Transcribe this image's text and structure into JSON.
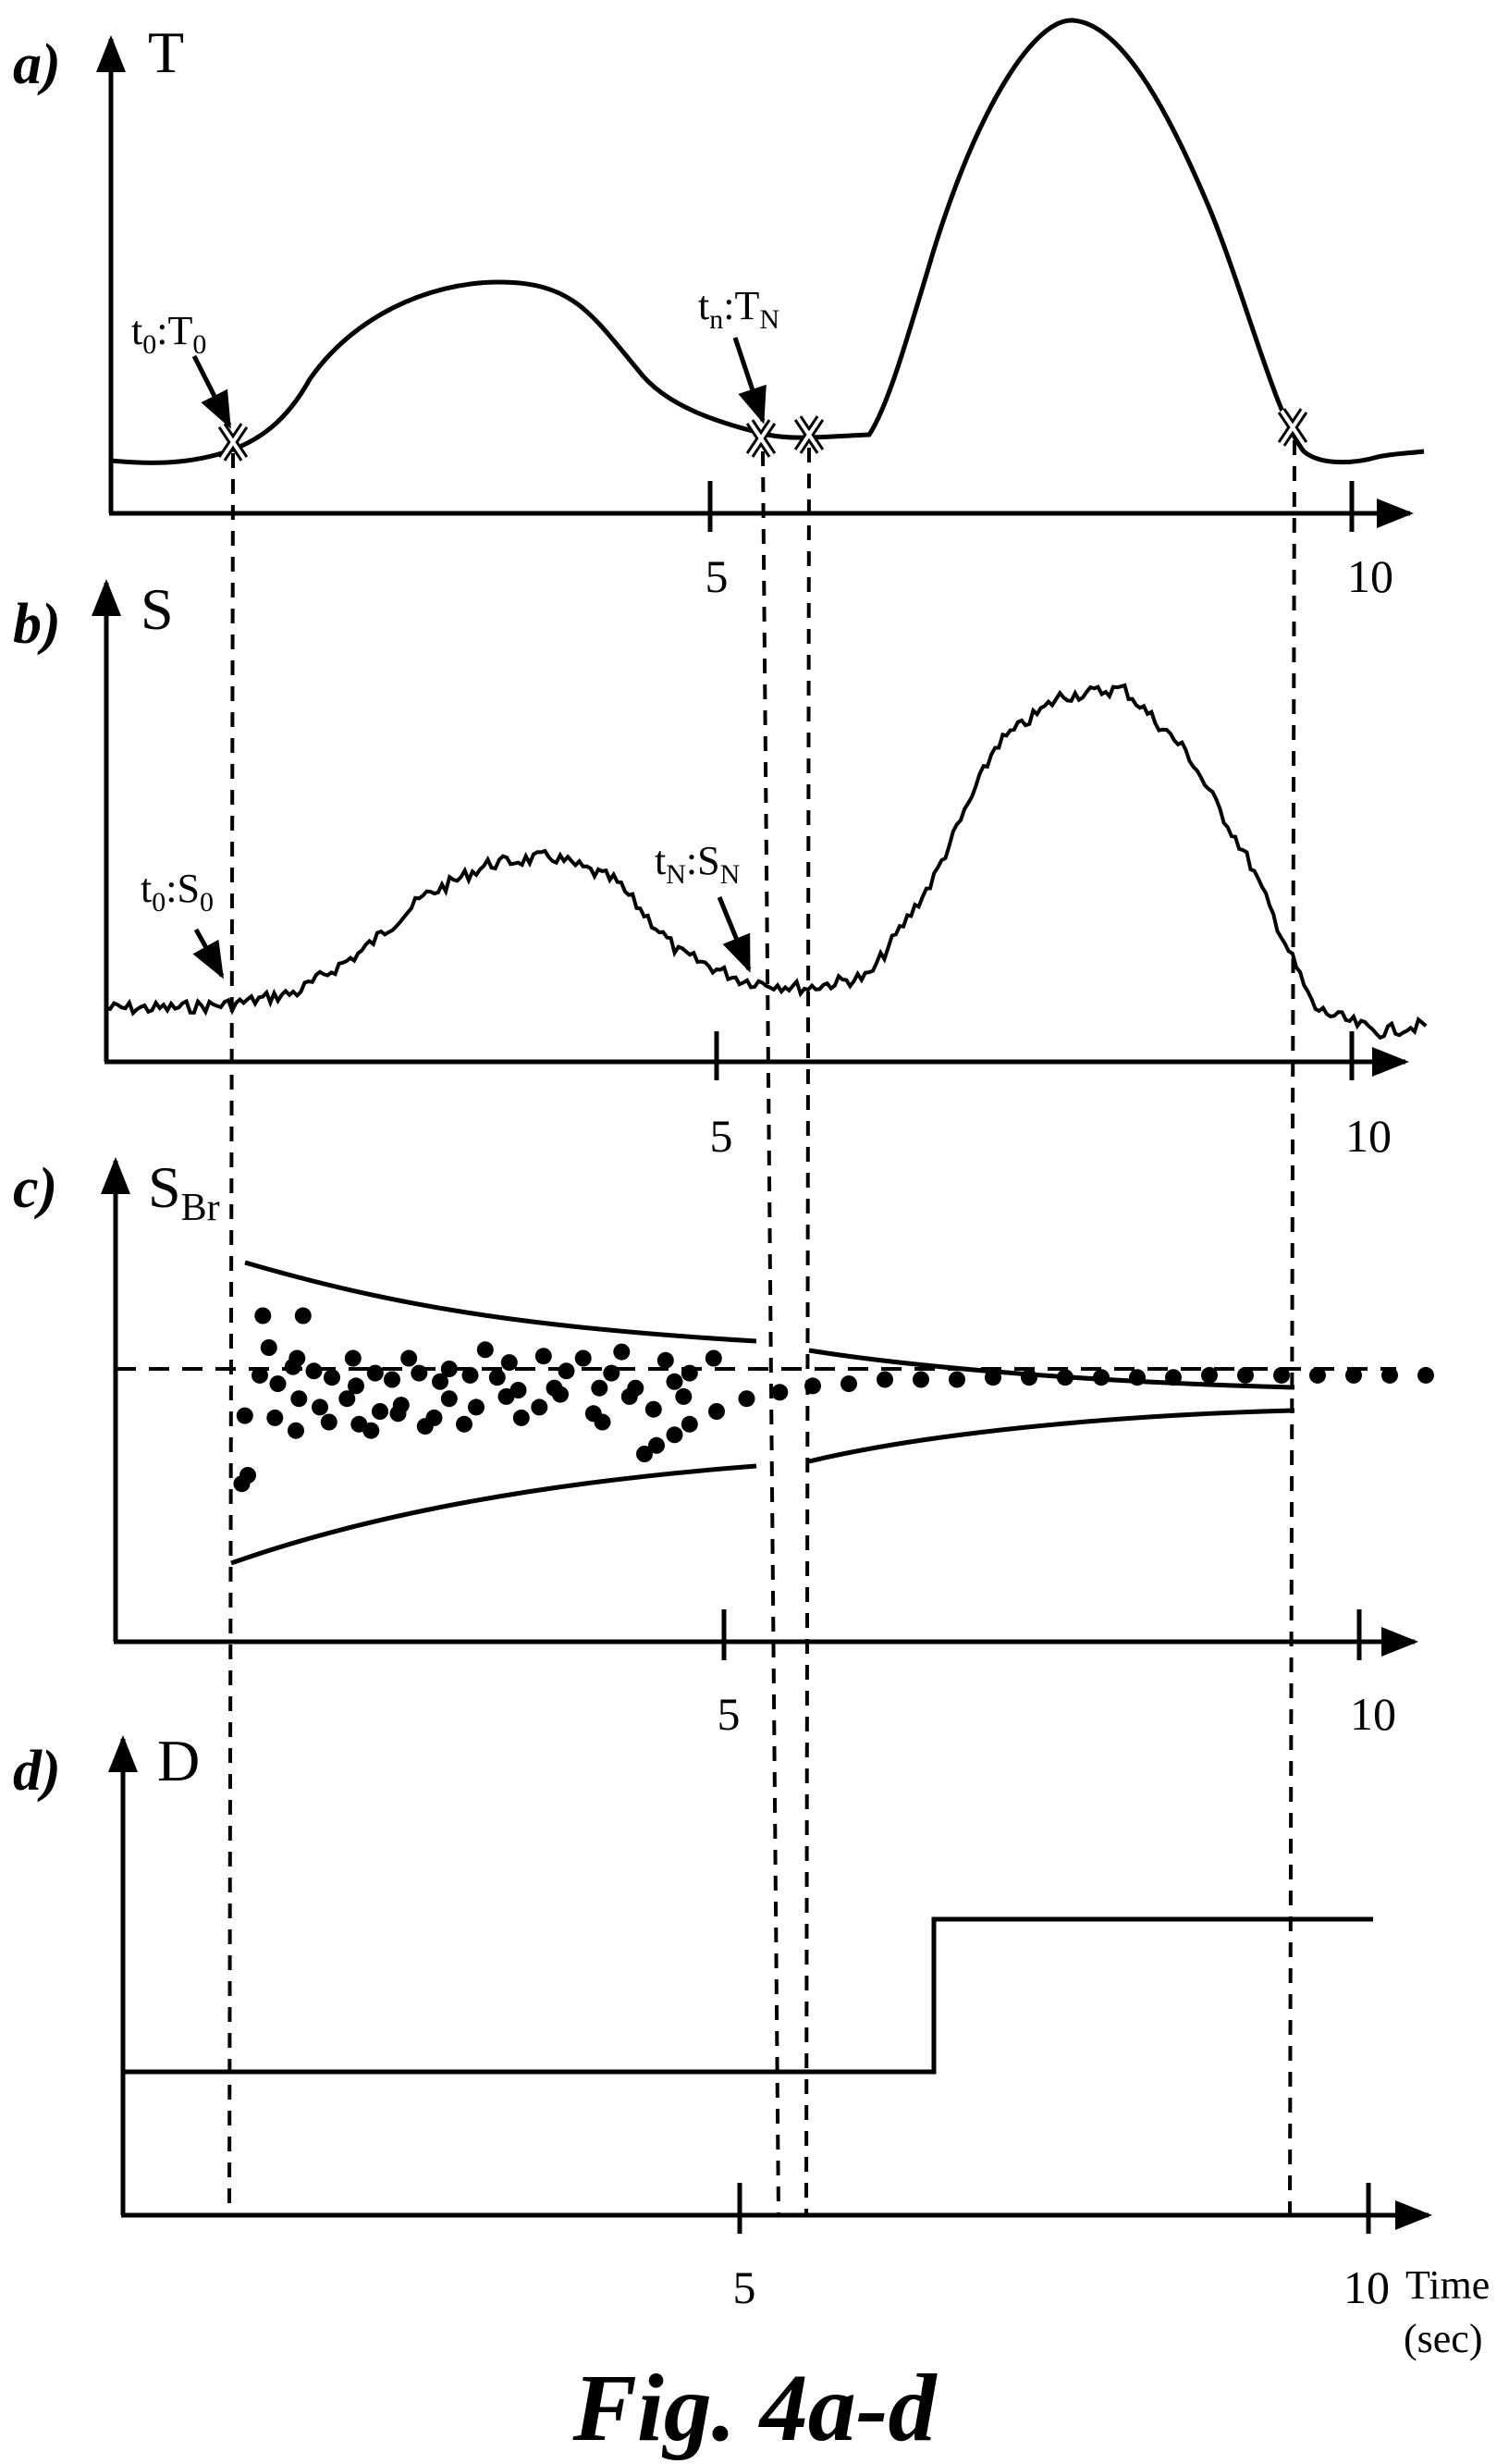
{
  "caption": "Fig. 4a-d",
  "time_axis": {
    "ticks": [
      "5",
      "10"
    ],
    "label_line1": "Time",
    "label_line2": "(sec)"
  },
  "panels": {
    "a": {
      "letter": "a)",
      "y_label": "T",
      "marker_labels": [
        {
          "t": "t",
          "t_sub": "0",
          "v": "T",
          "v_sub": "0"
        },
        {
          "t": "t",
          "t_sub": "n",
          "v": "T",
          "v_sub": "N"
        }
      ]
    },
    "b": {
      "letter": "b)",
      "y_label": "S",
      "marker_labels": [
        {
          "t": "t",
          "t_sub": "0",
          "v": "S",
          "v_sub": "0"
        },
        {
          "t": "t",
          "t_sub": "N",
          "v": "S",
          "v_sub": "N"
        }
      ]
    },
    "c": {
      "letter": "c)",
      "y_label": "S",
      "y_label_sub": "Br"
    },
    "d": {
      "letter": "d)",
      "y_label": "D"
    }
  },
  "markers": {
    "x_times": [
      1.95,
      5.3,
      5.6,
      9.37
    ],
    "dashed_times": [
      1.9,
      5.25,
      5.6,
      9.35
    ]
  },
  "chart_data": [
    {
      "type": "line",
      "panel": "a",
      "ylabel": "T",
      "x": [
        0,
        0.5,
        1.0,
        1.5,
        2.0,
        2.5,
        3.0,
        3.5,
        4.0,
        4.5,
        5.0,
        5.5,
        6.0,
        6.5,
        7.0,
        7.5,
        8.0,
        8.5,
        9.0,
        9.5,
        10.0,
        10.4
      ],
      "y": [
        0.12,
        0.11,
        0.12,
        0.16,
        0.28,
        0.42,
        0.52,
        0.53,
        0.45,
        0.29,
        0.19,
        0.17,
        0.18,
        0.5,
        0.82,
        1.0,
        0.95,
        0.7,
        0.4,
        0.13,
        0.1,
        0.13
      ]
    },
    {
      "type": "line",
      "panel": "b",
      "ylabel": "S",
      "x": [
        0,
        0.5,
        1.0,
        1.5,
        2.0,
        2.5,
        3.0,
        3.5,
        4.0,
        4.5,
        5.0,
        5.5,
        6.0,
        6.5,
        7.0,
        7.5,
        8.0,
        8.5,
        9.0,
        9.5,
        10.0,
        10.4
      ],
      "y": [
        0.14,
        0.14,
        0.15,
        0.18,
        0.28,
        0.42,
        0.5,
        0.52,
        0.46,
        0.28,
        0.21,
        0.19,
        0.22,
        0.46,
        0.8,
        0.92,
        0.94,
        0.78,
        0.5,
        0.14,
        0.08,
        0.1
      ]
    },
    {
      "type": "scatter",
      "panel": "c",
      "ylabel": "S_Br",
      "points": [
        [
          2.45,
          0.25
        ],
        [
          3.12,
          0.25
        ],
        [
          2.55,
          0.1
        ],
        [
          3.02,
          0.05
        ],
        [
          3.95,
          0.05
        ],
        [
          4.32,
          -0.02
        ],
        [
          4.88,
          0.05
        ],
        [
          5.55,
          0.0
        ],
        [
          6.15,
          0.09
        ],
        [
          6.55,
          0.03
        ],
        [
          7.12,
          0.06
        ],
        [
          7.78,
          0.05
        ],
        [
          8.42,
          0.08
        ],
        [
          9.15,
          0.04
        ],
        [
          9.95,
          0.05
        ],
        [
          2.4,
          -0.03
        ],
        [
          2.7,
          -0.07
        ],
        [
          2.95,
          0.01
        ],
        [
          3.3,
          -0.01
        ],
        [
          3.6,
          -0.04
        ],
        [
          4.0,
          -0.08
        ],
        [
          4.6,
          -0.05
        ],
        [
          5.05,
          -0.02
        ],
        [
          5.4,
          -0.06
        ],
        [
          5.9,
          -0.03
        ],
        [
          6.35,
          -0.04
        ],
        [
          6.7,
          -0.1
        ],
        [
          7.3,
          -0.09
        ],
        [
          7.5,
          -0.01
        ],
        [
          8.05,
          -0.09
        ],
        [
          8.25,
          -0.02
        ],
        [
          8.65,
          -0.09
        ],
        [
          9.3,
          -0.06
        ],
        [
          9.55,
          -0.02
        ],
        [
          2.15,
          -0.22
        ],
        [
          2.65,
          -0.23
        ],
        [
          3.05,
          -0.14
        ],
        [
          3.4,
          -0.18
        ],
        [
          3.85,
          -0.14
        ],
        [
          4.4,
          -0.2
        ],
        [
          4.75,
          -0.17
        ],
        [
          5.3,
          -0.23
        ],
        [
          5.55,
          -0.14
        ],
        [
          6.0,
          -0.18
        ],
        [
          6.5,
          -0.13
        ],
        [
          7.05,
          -0.18
        ],
        [
          7.4,
          -0.12
        ],
        [
          7.95,
          -0.21
        ],
        [
          8.55,
          -0.13
        ],
        [
          8.95,
          -0.19
        ],
        [
          9.45,
          -0.13
        ],
        [
          3.55,
          -0.25
        ],
        [
          4.05,
          -0.26
        ],
        [
          4.25,
          -0.29
        ],
        [
          4.7,
          -0.21
        ],
        [
          5.15,
          -0.27
        ],
        [
          5.8,
          -0.26
        ],
        [
          6.75,
          -0.23
        ],
        [
          3.0,
          -0.29
        ],
        [
          8.1,
          -0.25
        ],
        [
          2.1,
          -0.54
        ],
        [
          2.2,
          -0.5
        ],
        [
          8.8,
          -0.4
        ],
        [
          9.0,
          -0.36
        ],
        [
          9.3,
          -0.31
        ],
        [
          9.55,
          -0.26
        ],
        [
          10.0,
          -0.2
        ],
        [
          10.5,
          -0.14
        ],
        [
          11.05,
          -0.11
        ],
        [
          11.6,
          -0.08
        ],
        [
          12.2,
          -0.07
        ],
        [
          12.8,
          -0.05
        ],
        [
          13.4,
          -0.05
        ],
        [
          14.0,
          -0.05
        ],
        [
          14.6,
          -0.04
        ],
        [
          15.2,
          -0.04
        ],
        [
          15.8,
          -0.04
        ],
        [
          16.4,
          -0.04
        ],
        [
          17.0,
          -0.04
        ],
        [
          17.6,
          -0.04
        ],
        [
          18.2,
          -0.03
        ],
        [
          18.8,
          -0.03
        ],
        [
          19.4,
          -0.03
        ],
        [
          20.0,
          -0.03
        ],
        [
          20.6,
          -0.03
        ],
        [
          21.2,
          -0.03
        ],
        [
          21.8,
          -0.03
        ]
      ]
    },
    {
      "type": "line",
      "panel": "d",
      "ylabel": "D",
      "x": [
        0,
        6.3,
        6.3,
        10
      ],
      "y": [
        0,
        0,
        1,
        1
      ]
    }
  ]
}
